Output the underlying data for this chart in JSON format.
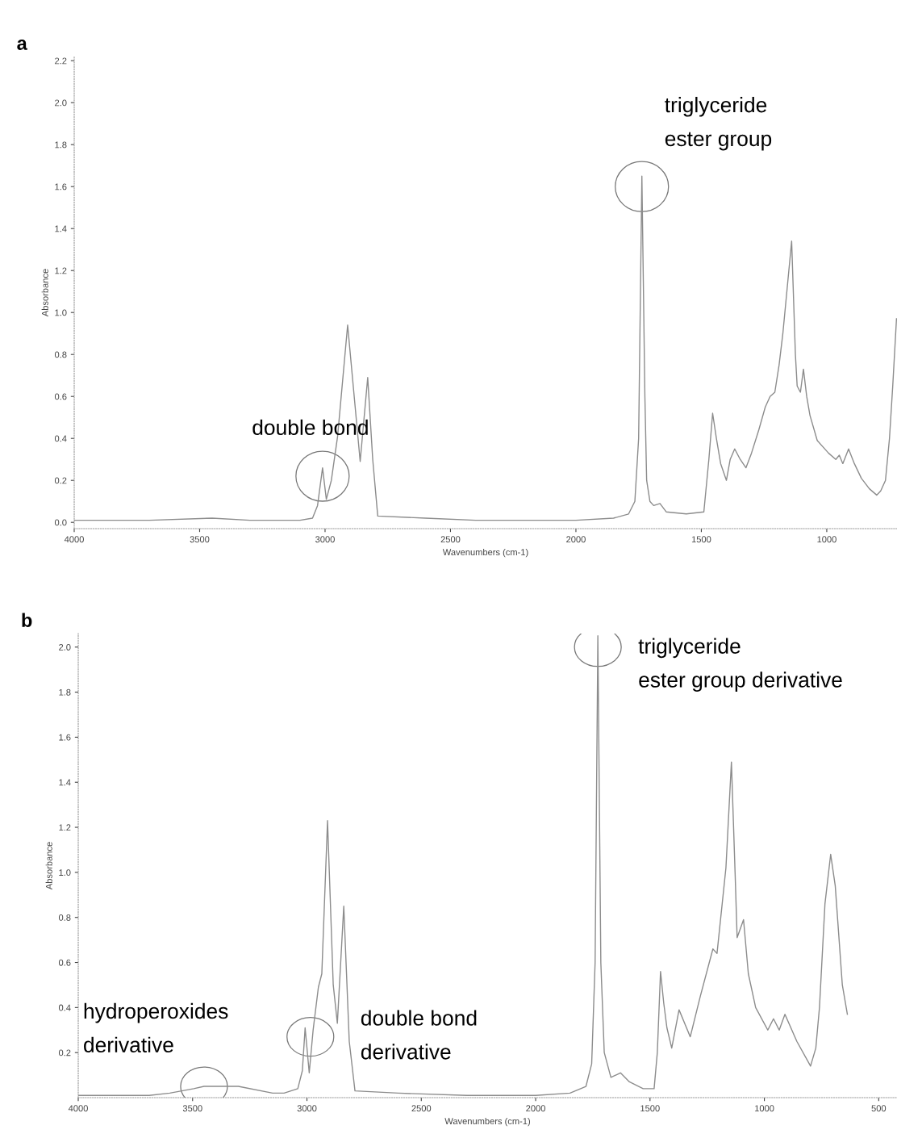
{
  "chart_data": [
    {
      "type": "line",
      "title": "a",
      "xlabel": "Wavenumbers (cm-1)",
      "ylabel": "Absorbance",
      "xlim": [
        4000,
        720
      ],
      "ylim": [
        -0.03,
        2.22
      ],
      "xticks": [
        4000,
        3500,
        3000,
        2500,
        2000,
        1500,
        1000
      ],
      "yticks": [
        {
          "value": 0,
          "label": "0.0"
        },
        0.2,
        0.4,
        0.6,
        0.8,
        {
          "value": 1,
          "label": "1.0"
        },
        1.2,
        1.4,
        1.6,
        1.8,
        {
          "value": 2,
          "label": "2.0"
        },
        2.2
      ],
      "series": [
        {
          "color": "#8c8c8c",
          "x": [
            4000,
            3700,
            3450,
            3300,
            3100,
            3050,
            3030,
            3010,
            2995,
            2975,
            2950,
            2910,
            2880,
            2860,
            2830,
            2810,
            2790,
            2600,
            2400,
            2200,
            2000,
            1850,
            1790,
            1765,
            1750,
            1737,
            1725,
            1718,
            1705,
            1690,
            1665,
            1640,
            1560,
            1490,
            1470,
            1455,
            1440,
            1423,
            1400,
            1385,
            1367,
            1345,
            1322,
            1300,
            1271,
            1245,
            1226,
            1207,
            1190,
            1175,
            1140,
            1125,
            1118,
            1105,
            1093,
            1080,
            1067,
            1038,
            993,
            964,
            950,
            936,
            913,
            890,
            862,
            830,
            801,
            785,
            766,
            750,
            737,
            722
          ],
          "values": [
            0.01,
            0.01,
            0.02,
            0.01,
            0.01,
            0.02,
            0.08,
            0.26,
            0.11,
            0.2,
            0.41,
            0.94,
            0.55,
            0.29,
            0.69,
            0.3,
            0.03,
            0.02,
            0.01,
            0.01,
            0.01,
            0.02,
            0.04,
            0.1,
            0.4,
            1.65,
            0.6,
            0.2,
            0.1,
            0.08,
            0.09,
            0.05,
            0.04,
            0.05,
            0.3,
            0.52,
            0.4,
            0.28,
            0.2,
            0.3,
            0.35,
            0.3,
            0.26,
            0.33,
            0.44,
            0.55,
            0.6,
            0.62,
            0.75,
            0.9,
            1.34,
            0.8,
            0.65,
            0.62,
            0.73,
            0.6,
            0.51,
            0.39,
            0.33,
            0.3,
            0.32,
            0.28,
            0.35,
            0.28,
            0.21,
            0.16,
            0.13,
            0.15,
            0.2,
            0.4,
            0.65,
            0.97
          ]
        }
      ],
      "annotations": [
        {
          "text": "double bond",
          "x": 3010,
          "y": 0.22
        },
        {
          "text": "triglyceride\nester group",
          "x": 1737,
          "y": 1.6
        }
      ]
    },
    {
      "type": "line",
      "title": "b",
      "xlabel": "Wavenumbers (cm-1)",
      "ylabel": "Absorbance",
      "xlim": [
        4000,
        420
      ],
      "ylim": [
        0,
        2.06
      ],
      "xticks": [
        4000,
        3500,
        3000,
        2500,
        2000,
        1500,
        1000,
        500
      ],
      "yticks": [
        0.2,
        0.4,
        0.6,
        0.8,
        {
          "value": 1,
          "label": "1.0"
        },
        1.2,
        1.4,
        1.6,
        1.8,
        {
          "value": 2,
          "label": "2.0"
        }
      ],
      "series": [
        {
          "color": "#8c8c8c",
          "x": [
            4000,
            3850,
            3690,
            3600,
            3495,
            3450,
            3300,
            3150,
            3100,
            3040,
            3020,
            3008,
            2990,
            2973,
            2950,
            2935,
            2910,
            2885,
            2867,
            2839,
            2815,
            2790,
            2600,
            2300,
            2000,
            1850,
            1780,
            1755,
            1740,
            1728,
            1715,
            1700,
            1671,
            1629,
            1590,
            1530,
            1482,
            1468,
            1454,
            1440,
            1426,
            1405,
            1373,
            1324,
            1280,
            1225,
            1207,
            1168,
            1144,
            1128,
            1119,
            1091,
            1070,
            1038,
            985,
            960,
            935,
            910,
            858,
            798,
            775,
            759,
            735,
            710,
            690,
            659,
            637
          ],
          "values": [
            0.01,
            0.01,
            0.01,
            0.02,
            0.04,
            0.05,
            0.05,
            0.02,
            0.02,
            0.04,
            0.12,
            0.31,
            0.11,
            0.3,
            0.49,
            0.55,
            1.23,
            0.5,
            0.33,
            0.85,
            0.25,
            0.03,
            0.02,
            0.01,
            0.01,
            0.02,
            0.05,
            0.15,
            0.6,
            2.05,
            0.6,
            0.2,
            0.09,
            0.11,
            0.07,
            0.04,
            0.04,
            0.2,
            0.56,
            0.42,
            0.31,
            0.22,
            0.39,
            0.27,
            0.45,
            0.66,
            0.64,
            1.02,
            1.49,
            1.0,
            0.71,
            0.79,
            0.55,
            0.4,
            0.3,
            0.35,
            0.3,
            0.37,
            0.25,
            0.14,
            0.22,
            0.4,
            0.86,
            1.08,
            0.94,
            0.5,
            0.37
          ]
        }
      ],
      "annotations": [
        {
          "text": "hydroperoxides\nderivative",
          "x": 3450,
          "y": 0.05
        },
        {
          "text": "double bond\nderivative",
          "x": 2985,
          "y": 0.27
        },
        {
          "text": "triglyceride\nester group derivative",
          "x": 1728,
          "y": 2.0
        }
      ]
    }
  ]
}
